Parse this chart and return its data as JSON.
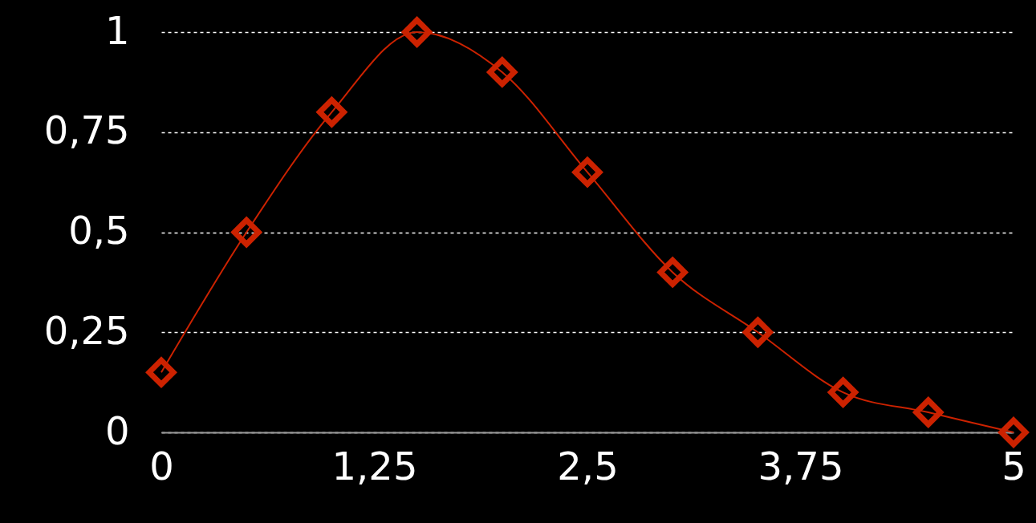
{
  "chart_data": {
    "type": "line",
    "x": [
      0,
      0.5,
      1,
      1.5,
      2,
      2.5,
      3,
      3.5,
      4,
      4.5,
      5
    ],
    "series": [
      {
        "color": "#cc2200",
        "values": [
          0.15,
          0.5,
          0.8,
          1.0,
          0.9,
          0.65,
          0.4,
          0.25,
          0.1,
          0.05,
          0
        ]
      }
    ],
    "xlim": [
      0,
      5
    ],
    "xticks": [
      0,
      {
        "value": 1.25,
        "label": "1,25"
      },
      {
        "value": 2.5,
        "label": "2,5"
      },
      {
        "value": 3.75,
        "label": "3,75"
      },
      5
    ],
    "ylim": [
      0,
      1
    ],
    "yticks": [
      0,
      {
        "value": 0.25,
        "label": "0,25"
      },
      {
        "value": 0.5,
        "label": "0,5"
      },
      {
        "value": 0.75,
        "label": "0,75"
      },
      1
    ],
    "grid": "y",
    "marker": "diamond",
    "line_style": "solid"
  }
}
